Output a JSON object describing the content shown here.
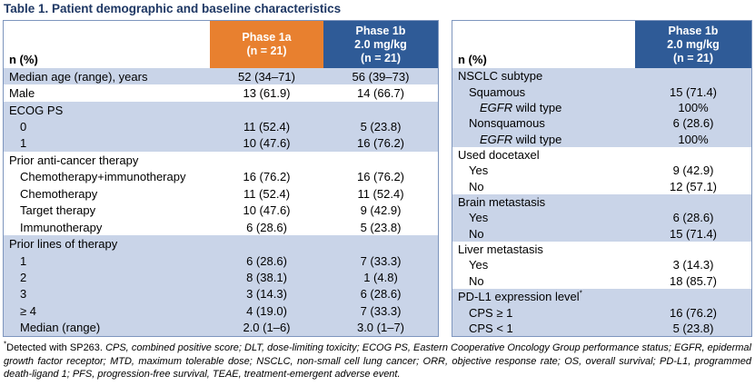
{
  "title": "Table 1. Patient demographic and baseline characteristics",
  "colors": {
    "title": "#1F3864",
    "border": "#7E96BE",
    "band": "#C9D4E8",
    "phase1a_orange": "#E8802F",
    "phase1b_blue": "#2F5B97",
    "header_text": "#FFFFFF",
    "body_text": "#000000"
  },
  "left_table": {
    "corner_label": "n (%)",
    "columns": [
      {
        "lines": [
          "Phase 1a",
          "(n = 21)"
        ],
        "color": "#E8802F"
      },
      {
        "lines": [
          "Phase 1b",
          "2.0 mg/kg",
          "(n = 21)"
        ],
        "color": "#2F5B97"
      }
    ],
    "rows": [
      {
        "label": "Median age (range), years",
        "indent": 0,
        "band": true,
        "values": [
          "52 (34–71)",
          "56 (39–73)"
        ]
      },
      {
        "label": "Male",
        "indent": 0,
        "band": false,
        "values": [
          "13 (61.9)",
          "14 (66.7)"
        ]
      },
      {
        "label": "ECOG PS",
        "indent": 0,
        "band": true,
        "values": [
          "",
          ""
        ]
      },
      {
        "label": "0",
        "indent": 1,
        "band": true,
        "values": [
          "11 (52.4)",
          "5 (23.8)"
        ]
      },
      {
        "label": "1",
        "indent": 1,
        "band": true,
        "values": [
          "10 (47.6)",
          "16 (76.2)"
        ]
      },
      {
        "label": "Prior anti-cancer therapy",
        "indent": 0,
        "band": false,
        "values": [
          "",
          ""
        ]
      },
      {
        "label": "Chemotherapy+immunotherapy",
        "indent": 1,
        "band": false,
        "values": [
          "16 (76.2)",
          "16 (76.2)"
        ]
      },
      {
        "label": "Chemotherapy",
        "indent": 1,
        "band": false,
        "values": [
          "11 (52.4)",
          "11 (52.4)"
        ]
      },
      {
        "label": "Target therapy",
        "indent": 1,
        "band": false,
        "values": [
          "10 (47.6)",
          "9 (42.9)"
        ]
      },
      {
        "label": "Immunotherapy",
        "indent": 1,
        "band": false,
        "values": [
          "6 (28.6)",
          "5 (23.8)"
        ]
      },
      {
        "label": "Prior lines of therapy",
        "indent": 0,
        "band": true,
        "values": [
          "",
          ""
        ]
      },
      {
        "label": "1",
        "indent": 1,
        "band": true,
        "values": [
          "6 (28.6)",
          "7 (33.3)"
        ]
      },
      {
        "label": "2",
        "indent": 1,
        "band": true,
        "values": [
          "8 (38.1)",
          "1 (4.8)"
        ]
      },
      {
        "label": "3",
        "indent": 1,
        "band": true,
        "values": [
          "3 (14.3)",
          "6 (28.6)"
        ]
      },
      {
        "label": "≥ 4",
        "indent": 1,
        "band": true,
        "values": [
          "4 (19.0)",
          "7 (33.3)"
        ]
      },
      {
        "label": "Median (range)",
        "indent": 1,
        "band": true,
        "values": [
          "2.0 (1–6)",
          "3.0 (1–7)"
        ]
      }
    ]
  },
  "right_table": {
    "corner_label": "n (%)",
    "columns": [
      {
        "lines": [
          "Phase 1b",
          "2.0 mg/kg",
          "(n = 21)"
        ],
        "color": "#2F5B97"
      }
    ],
    "rows": [
      {
        "label": "NSCLC subtype",
        "indent": 0,
        "band": true,
        "values": [
          ""
        ]
      },
      {
        "label": "Squamous",
        "indent": 1,
        "band": true,
        "values": [
          "15 (71.4)"
        ]
      },
      {
        "italic_lead": "EGFR",
        "label": " wild type",
        "indent": 2,
        "band": true,
        "values": [
          "100%"
        ]
      },
      {
        "label": "Nonsquamous",
        "indent": 1,
        "band": true,
        "values": [
          "6 (28.6)"
        ]
      },
      {
        "italic_lead": "EGFR",
        "label": " wild type",
        "indent": 2,
        "band": true,
        "values": [
          "100%"
        ]
      },
      {
        "label": "Used docetaxel",
        "indent": 0,
        "band": false,
        "values": [
          ""
        ]
      },
      {
        "label": "Yes",
        "indent": 1,
        "band": false,
        "values": [
          "9 (42.9)"
        ]
      },
      {
        "label": "No",
        "indent": 1,
        "band": false,
        "values": [
          "12 (57.1)"
        ]
      },
      {
        "label": "Brain metastasis",
        "indent": 0,
        "band": true,
        "values": [
          ""
        ]
      },
      {
        "label": "Yes",
        "indent": 1,
        "band": true,
        "values": [
          "6 (28.6)"
        ]
      },
      {
        "label": "No",
        "indent": 1,
        "band": true,
        "values": [
          "15 (71.4)"
        ]
      },
      {
        "label": "Liver metastasis",
        "indent": 0,
        "band": false,
        "values": [
          ""
        ]
      },
      {
        "label": "Yes",
        "indent": 1,
        "band": false,
        "values": [
          "3 (14.3)"
        ]
      },
      {
        "label": "No",
        "indent": 1,
        "band": false,
        "values": [
          "18 (85.7)"
        ]
      },
      {
        "label": "PD-L1 expression level",
        "sup": "*",
        "indent": 0,
        "band": true,
        "values": [
          ""
        ]
      },
      {
        "label": "CPS ≥ 1",
        "indent": 1,
        "band": true,
        "values": [
          "16 (76.2)"
        ]
      },
      {
        "label": "CPS < 1",
        "indent": 1,
        "band": true,
        "values": [
          "5 (23.8)"
        ]
      }
    ]
  },
  "footnote": {
    "marker": "*",
    "plain": "Detected with SP263. ",
    "italic": "CPS, combined positive score; DLT, dose-limiting toxicity; ECOG PS, Eastern Cooperative Oncology Group performance status; EGFR, epidermal growth factor receptor; MTD, maximum tolerable dose; NSCLC, non-small cell lung cancer; ORR, objective response rate; OS, overall survival; PD-L1, programmed death-ligand 1; PFS, progression-free survival, TEAE, treatment-emergent adverse event."
  }
}
